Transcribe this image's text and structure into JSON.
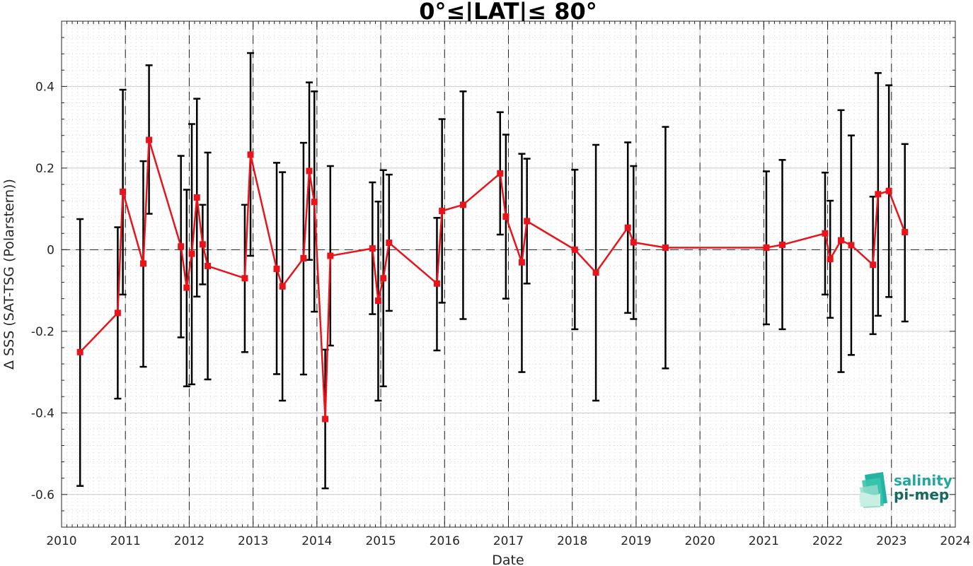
{
  "chart_data": {
    "type": "scatter",
    "title": "0°≤|LAT|≤ 80°",
    "xlabel": "Date",
    "ylabel": "Δ SSS (SAT-TSG (Polarstern))",
    "xlim": [
      2010,
      2024
    ],
    "ylim": [
      -0.68,
      0.56
    ],
    "x_ticks": [
      "2010",
      "2011",
      "2012",
      "2013",
      "2014",
      "2015",
      "2016",
      "2017",
      "2018",
      "2019",
      "2020",
      "2021",
      "2022",
      "2023",
      "2024"
    ],
    "y_ticks": [
      {
        "value": -0.6,
        "label": "-0.6"
      },
      {
        "value": -0.4,
        "label": "-0.4"
      },
      {
        "value": -0.2,
        "label": "-0.2"
      },
      {
        "value": 0,
        "label": "0"
      },
      {
        "value": 0.2,
        "label": "0.2"
      },
      {
        "value": 0.4,
        "label": "0.4"
      }
    ],
    "grid": true,
    "zero_line": true,
    "year_separators": [
      2011,
      2012,
      2013,
      2014,
      2015,
      2016,
      2017,
      2018,
      2019,
      2020,
      2021,
      2022,
      2023
    ],
    "line_color": "#e8141b",
    "errorbar_color": "#000000",
    "points": [
      {
        "x": 2010.29,
        "y": -0.251,
        "lo": -0.579,
        "hi": 0.075
      },
      {
        "x": 2010.88,
        "y": -0.155,
        "lo": -0.365,
        "hi": 0.055
      },
      {
        "x": 2010.96,
        "y": 0.142,
        "lo": -0.11,
        "hi": 0.392
      },
      {
        "x": 2011.28,
        "y": -0.034,
        "lo": -0.287,
        "hi": 0.217
      },
      {
        "x": 2011.37,
        "y": 0.269,
        "lo": 0.088,
        "hi": 0.452
      },
      {
        "x": 2011.87,
        "y": 0.008,
        "lo": -0.215,
        "hi": 0.23
      },
      {
        "x": 2011.96,
        "y": -0.093,
        "lo": -0.335,
        "hi": 0.147
      },
      {
        "x": 2012.04,
        "y": -0.01,
        "lo": -0.33,
        "hi": 0.308
      },
      {
        "x": 2012.12,
        "y": 0.128,
        "lo": -0.115,
        "hi": 0.37
      },
      {
        "x": 2012.21,
        "y": 0.013,
        "lo": -0.085,
        "hi": 0.11
      },
      {
        "x": 2012.29,
        "y": -0.04,
        "lo": -0.318,
        "hi": 0.238
      },
      {
        "x": 2012.87,
        "y": -0.07,
        "lo": -0.251,
        "hi": 0.11
      },
      {
        "x": 2012.96,
        "y": 0.233,
        "lo": -0.015,
        "hi": 0.482
      },
      {
        "x": 2013.37,
        "y": -0.047,
        "lo": -0.305,
        "hi": 0.213
      },
      {
        "x": 2013.46,
        "y": -0.09,
        "lo": -0.37,
        "hi": 0.19
      },
      {
        "x": 2013.79,
        "y": -0.021,
        "lo": -0.306,
        "hi": 0.262
      },
      {
        "x": 2013.88,
        "y": 0.193,
        "lo": -0.025,
        "hi": 0.41
      },
      {
        "x": 2013.96,
        "y": 0.117,
        "lo": -0.152,
        "hi": 0.388
      },
      {
        "x": 2014.13,
        "y": -0.415,
        "lo": -0.585,
        "hi": -0.245
      },
      {
        "x": 2014.21,
        "y": -0.015,
        "lo": -0.235,
        "hi": 0.205
      },
      {
        "x": 2014.87,
        "y": 0.003,
        "lo": -0.158,
        "hi": 0.165
      },
      {
        "x": 2014.96,
        "y": -0.125,
        "lo": -0.37,
        "hi": 0.118
      },
      {
        "x": 2015.04,
        "y": -0.07,
        "lo": -0.335,
        "hi": 0.195
      },
      {
        "x": 2015.13,
        "y": 0.017,
        "lo": -0.15,
        "hi": 0.184
      },
      {
        "x": 2015.88,
        "y": -0.083,
        "lo": -0.247,
        "hi": 0.078
      },
      {
        "x": 2015.96,
        "y": 0.095,
        "lo": -0.13,
        "hi": 0.32
      },
      {
        "x": 2016.29,
        "y": 0.11,
        "lo": -0.17,
        "hi": 0.388
      },
      {
        "x": 2016.87,
        "y": 0.187,
        "lo": 0.037,
        "hi": 0.337
      },
      {
        "x": 2016.96,
        "y": 0.081,
        "lo": -0.12,
        "hi": 0.282
      },
      {
        "x": 2017.21,
        "y": -0.031,
        "lo": -0.3,
        "hi": 0.235
      },
      {
        "x": 2017.29,
        "y": 0.07,
        "lo": -0.083,
        "hi": 0.223
      },
      {
        "x": 2018.04,
        "y": 0.0,
        "lo": -0.195,
        "hi": 0.196
      },
      {
        "x": 2018.37,
        "y": -0.056,
        "lo": -0.37,
        "hi": 0.257
      },
      {
        "x": 2018.87,
        "y": 0.054,
        "lo": -0.155,
        "hi": 0.263
      },
      {
        "x": 2018.96,
        "y": 0.018,
        "lo": -0.17,
        "hi": 0.205
      },
      {
        "x": 2019.46,
        "y": 0.005,
        "lo": -0.291,
        "hi": 0.301
      },
      {
        "x": 2021.04,
        "y": 0.005,
        "lo": -0.183,
        "hi": 0.192
      },
      {
        "x": 2021.29,
        "y": 0.012,
        "lo": -0.195,
        "hi": 0.22
      },
      {
        "x": 2021.96,
        "y": 0.04,
        "lo": -0.11,
        "hi": 0.189
      },
      {
        "x": 2022.04,
        "y": -0.023,
        "lo": -0.167,
        "hi": 0.12
      },
      {
        "x": 2022.21,
        "y": 0.023,
        "lo": -0.3,
        "hi": 0.342
      },
      {
        "x": 2022.37,
        "y": 0.011,
        "lo": -0.258,
        "hi": 0.28
      },
      {
        "x": 2022.71,
        "y": -0.037,
        "lo": -0.207,
        "hi": 0.13
      },
      {
        "x": 2022.79,
        "y": 0.136,
        "lo": -0.162,
        "hi": 0.433
      },
      {
        "x": 2022.96,
        "y": 0.144,
        "lo": -0.116,
        "hi": 0.403
      },
      {
        "x": 2023.21,
        "y": 0.043,
        "lo": -0.176,
        "hi": 0.259
      }
    ]
  },
  "logo": {
    "line1": "salinity",
    "line2": "pi-mep",
    "color1": "#21a89a",
    "color2": "#17695f"
  }
}
